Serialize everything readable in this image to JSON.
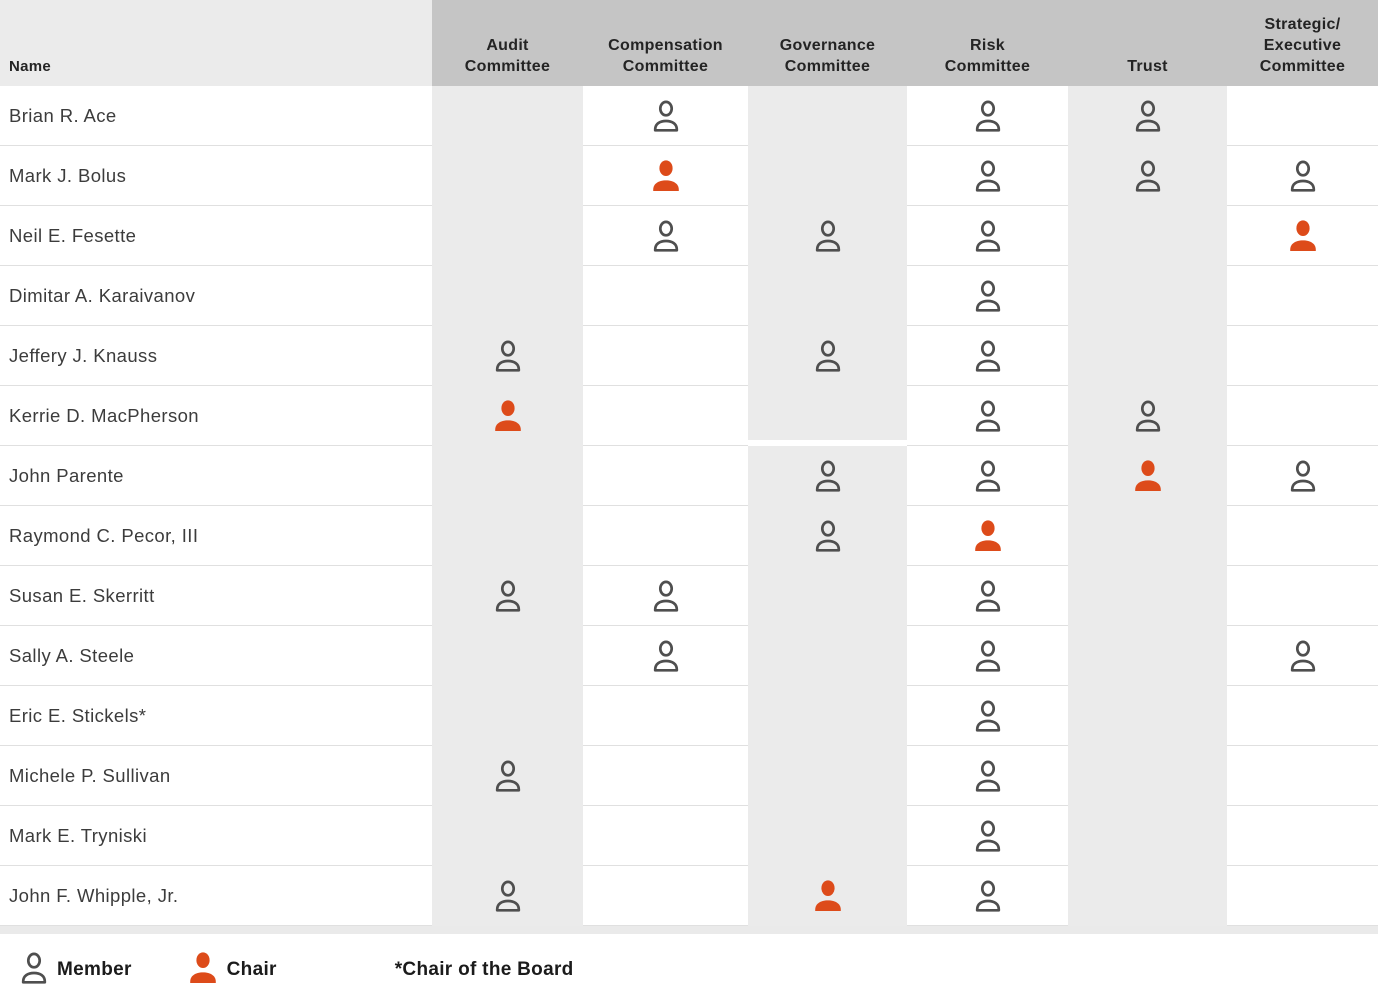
{
  "table": {
    "name_header": "Name",
    "columns": [
      {
        "key": "audit",
        "label": "Audit\nCommittee",
        "striped": true
      },
      {
        "key": "compensation",
        "label": "Compensation\nCommittee",
        "striped": false
      },
      {
        "key": "governance",
        "label": "Governance\nCommittee",
        "striped": true
      },
      {
        "key": "risk",
        "label": "Risk\nCommittee",
        "striped": false
      },
      {
        "key": "trust",
        "label": "Trust",
        "striped": true
      },
      {
        "key": "strategic",
        "label": "Strategic/\nExecutive\nCommittee",
        "striped": false
      }
    ],
    "rows": [
      {
        "name": "Brian R. Ace",
        "memberships": {
          "audit": "",
          "compensation": "member",
          "governance": "",
          "risk": "member",
          "trust": "member",
          "strategic": ""
        }
      },
      {
        "name": "Mark J. Bolus",
        "memberships": {
          "audit": "",
          "compensation": "chair",
          "governance": "",
          "risk": "member",
          "trust": "member",
          "strategic": "member"
        }
      },
      {
        "name": "Neil E. Fesette",
        "memberships": {
          "audit": "",
          "compensation": "member",
          "governance": "member",
          "risk": "member",
          "trust": "",
          "strategic": "chair"
        }
      },
      {
        "name": "Dimitar A. Karaivanov",
        "memberships": {
          "audit": "",
          "compensation": "",
          "governance": "",
          "risk": "member",
          "trust": "",
          "strategic": ""
        }
      },
      {
        "name": "Jeffery J. Knauss",
        "memberships": {
          "audit": "member",
          "compensation": "",
          "governance": "member",
          "risk": "member",
          "trust": "",
          "strategic": ""
        }
      },
      {
        "name": "Kerrie D. MacPherson",
        "memberships": {
          "audit": "chair",
          "compensation": "",
          "governance": "",
          "risk": "member",
          "trust": "member",
          "strategic": ""
        }
      },
      {
        "name": "John Parente",
        "memberships": {
          "audit": "",
          "compensation": "",
          "governance": "member",
          "risk": "member",
          "trust": "chair",
          "strategic": "member"
        }
      },
      {
        "name": "Raymond C. Pecor, III",
        "memberships": {
          "audit": "",
          "compensation": "",
          "governance": "member",
          "risk": "chair",
          "trust": "",
          "strategic": ""
        }
      },
      {
        "name": "Susan E. Skerritt",
        "memberships": {
          "audit": "member",
          "compensation": "member",
          "governance": "",
          "risk": "member",
          "trust": "",
          "strategic": ""
        }
      },
      {
        "name": "Sally A. Steele",
        "memberships": {
          "audit": "",
          "compensation": "member",
          "governance": "",
          "risk": "member",
          "trust": "",
          "strategic": "member"
        }
      },
      {
        "name": "Eric E. Stickels*",
        "memberships": {
          "audit": "",
          "compensation": "",
          "governance": "",
          "risk": "member",
          "trust": "",
          "strategic": ""
        }
      },
      {
        "name": "Michele P. Sullivan",
        "memberships": {
          "audit": "member",
          "compensation": "",
          "governance": "",
          "risk": "member",
          "trust": "",
          "strategic": ""
        }
      },
      {
        "name": "Mark E. Tryniski",
        "memberships": {
          "audit": "",
          "compensation": "",
          "governance": "",
          "risk": "member",
          "trust": "",
          "strategic": ""
        }
      },
      {
        "name": "John F. Whipple, Jr.",
        "memberships": {
          "audit": "member",
          "compensation": "",
          "governance": "chair",
          "risk": "member",
          "trust": "",
          "strategic": ""
        }
      }
    ]
  },
  "legend": {
    "member_label": "Member",
    "chair_label": "Chair",
    "board_note": "*Chair of the Board"
  },
  "icons": {
    "member": "person-outline-icon",
    "chair": "person-filled-icon"
  },
  "colors": {
    "chair_orange": "#DD4B1A",
    "member_gray": "#4F4F4F",
    "header_gray": "#C5C5C5",
    "stripe_gray": "#EBEBEB"
  }
}
